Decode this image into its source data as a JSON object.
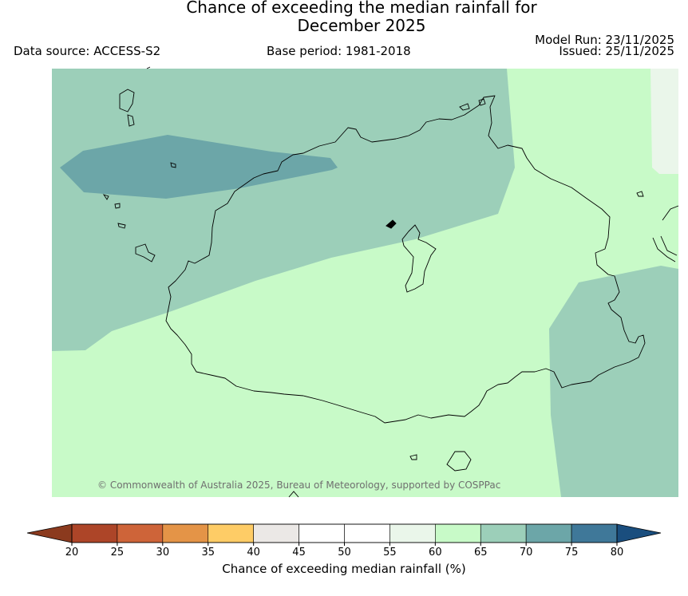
{
  "title": {
    "line1": "Chance of exceeding the median rainfall for",
    "line2": "December 2025"
  },
  "header": {
    "data_source": "Data source: ACCESS-S2",
    "base_period": "Base period: 1981-2018",
    "model_run": "Model Run: 23/11/2025",
    "issued": "Issued: 25/11/2025"
  },
  "map": {
    "copyright": "© Commonwealth of Australia 2025, Bureau of Meteorology, supported by COSPPac",
    "fill_colors": {
      "band_60_65": "#c8fac8",
      "band_65_70": "#9ccfb9",
      "band_70_75": "#6ca6a8",
      "band_55_60": "#eaf6ea"
    }
  },
  "colorbar": {
    "label": "Chance of exceeding median rainfall (%)",
    "ticks": [
      "20",
      "25",
      "30",
      "35",
      "40",
      "45",
      "50",
      "55",
      "60",
      "65",
      "70",
      "75",
      "80"
    ],
    "segment_colors": [
      "#ad4528",
      "#ce6439",
      "#e49447",
      "#fecc66",
      "#ebe8e6",
      "#ffffff",
      "#ffffff",
      "#eaf6ea",
      "#c8fac8",
      "#9ccfb9",
      "#6ca6a8",
      "#3f7899"
    ],
    "under_color": "#8b3a1e",
    "over_color": "#1a4e7e"
  }
}
